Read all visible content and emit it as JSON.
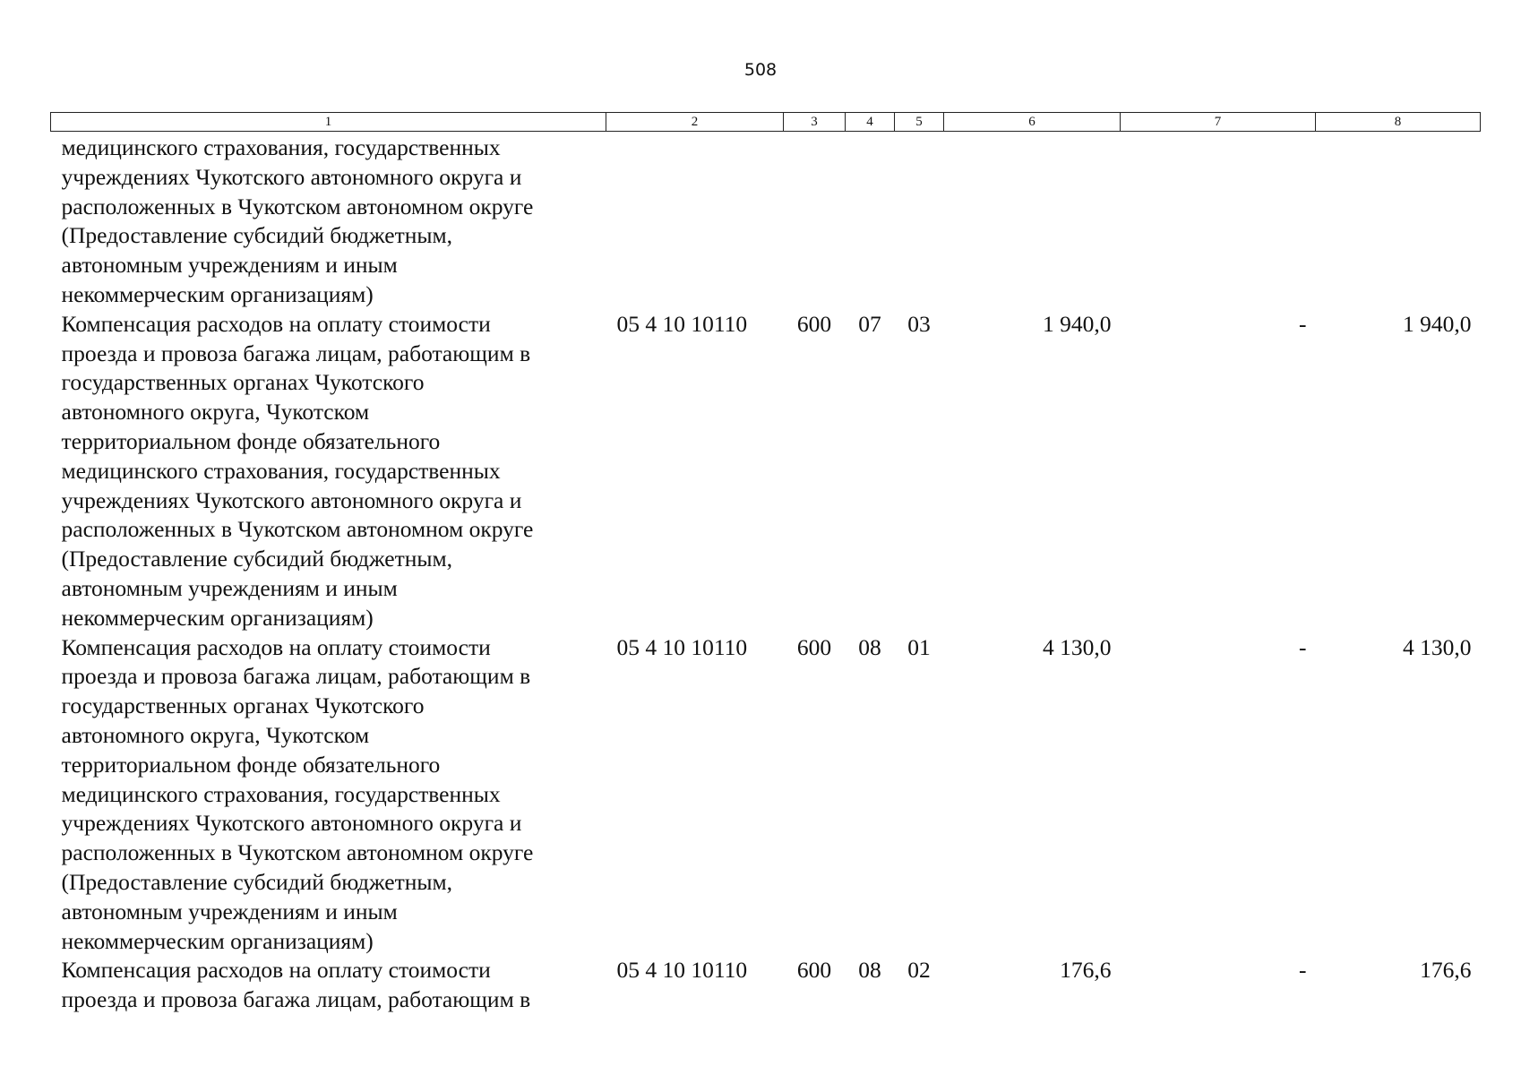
{
  "page_number": "508",
  "headers": [
    "1",
    "2",
    "3",
    "4",
    "5",
    "6",
    "7",
    "8"
  ],
  "rows": [
    {
      "description": "медицинского страхования, государственных\nучреждениях Чукотского автономного округа и\nрасположенных в Чукотском автономном округе\n(Предоставление субсидий бюджетным,\nавтономным учреждениям и иным\nнекоммерческим организациям)",
      "code": "",
      "type": "",
      "section": "",
      "subsection": "",
      "amount": "",
      "change": "",
      "total": ""
    },
    {
      "description": "Компенсация расходов на оплату стоимости\nпроезда и провоза багажа лицам, работающим в\nгосударственных органах Чукотского\nавтономного округа, Чукотском\nтерриториальном фонде обязательного\nмедицинского страхования, государственных\nучреждениях Чукотского автономного округа и\nрасположенных в Чукотском автономном округе\n(Предоставление субсидий бюджетным,\nавтономным учреждениям и иным\nнекоммерческим организациям)",
      "code": "05 4 10 10110",
      "type": "600",
      "section": "07",
      "subsection": "03",
      "amount": "1 940,0",
      "change": "-",
      "total": "1 940,0"
    },
    {
      "description": "Компенсация расходов на оплату стоимости\nпроезда и провоза багажа лицам, работающим в\nгосударственных органах Чукотского\nавтономного округа, Чукотском\nтерриториальном фонде обязательного\nмедицинского страхования, государственных\nучреждениях Чукотского автономного округа и\nрасположенных в Чукотском автономном округе\n(Предоставление субсидий бюджетным,\nавтономным учреждениям и иным\nнекоммерческим организациям)",
      "code": "05 4 10 10110",
      "type": "600",
      "section": "08",
      "subsection": "01",
      "amount": "4 130,0",
      "change": "-",
      "total": "4 130,0"
    },
    {
      "description": "Компенсация расходов на оплату стоимости\nпроезда и провоза багажа лицам, работающим в",
      "code": "05 4 10 10110",
      "type": "600",
      "section": "08",
      "subsection": "02",
      "amount": "176,6",
      "change": "-",
      "total": "176,6"
    }
  ]
}
